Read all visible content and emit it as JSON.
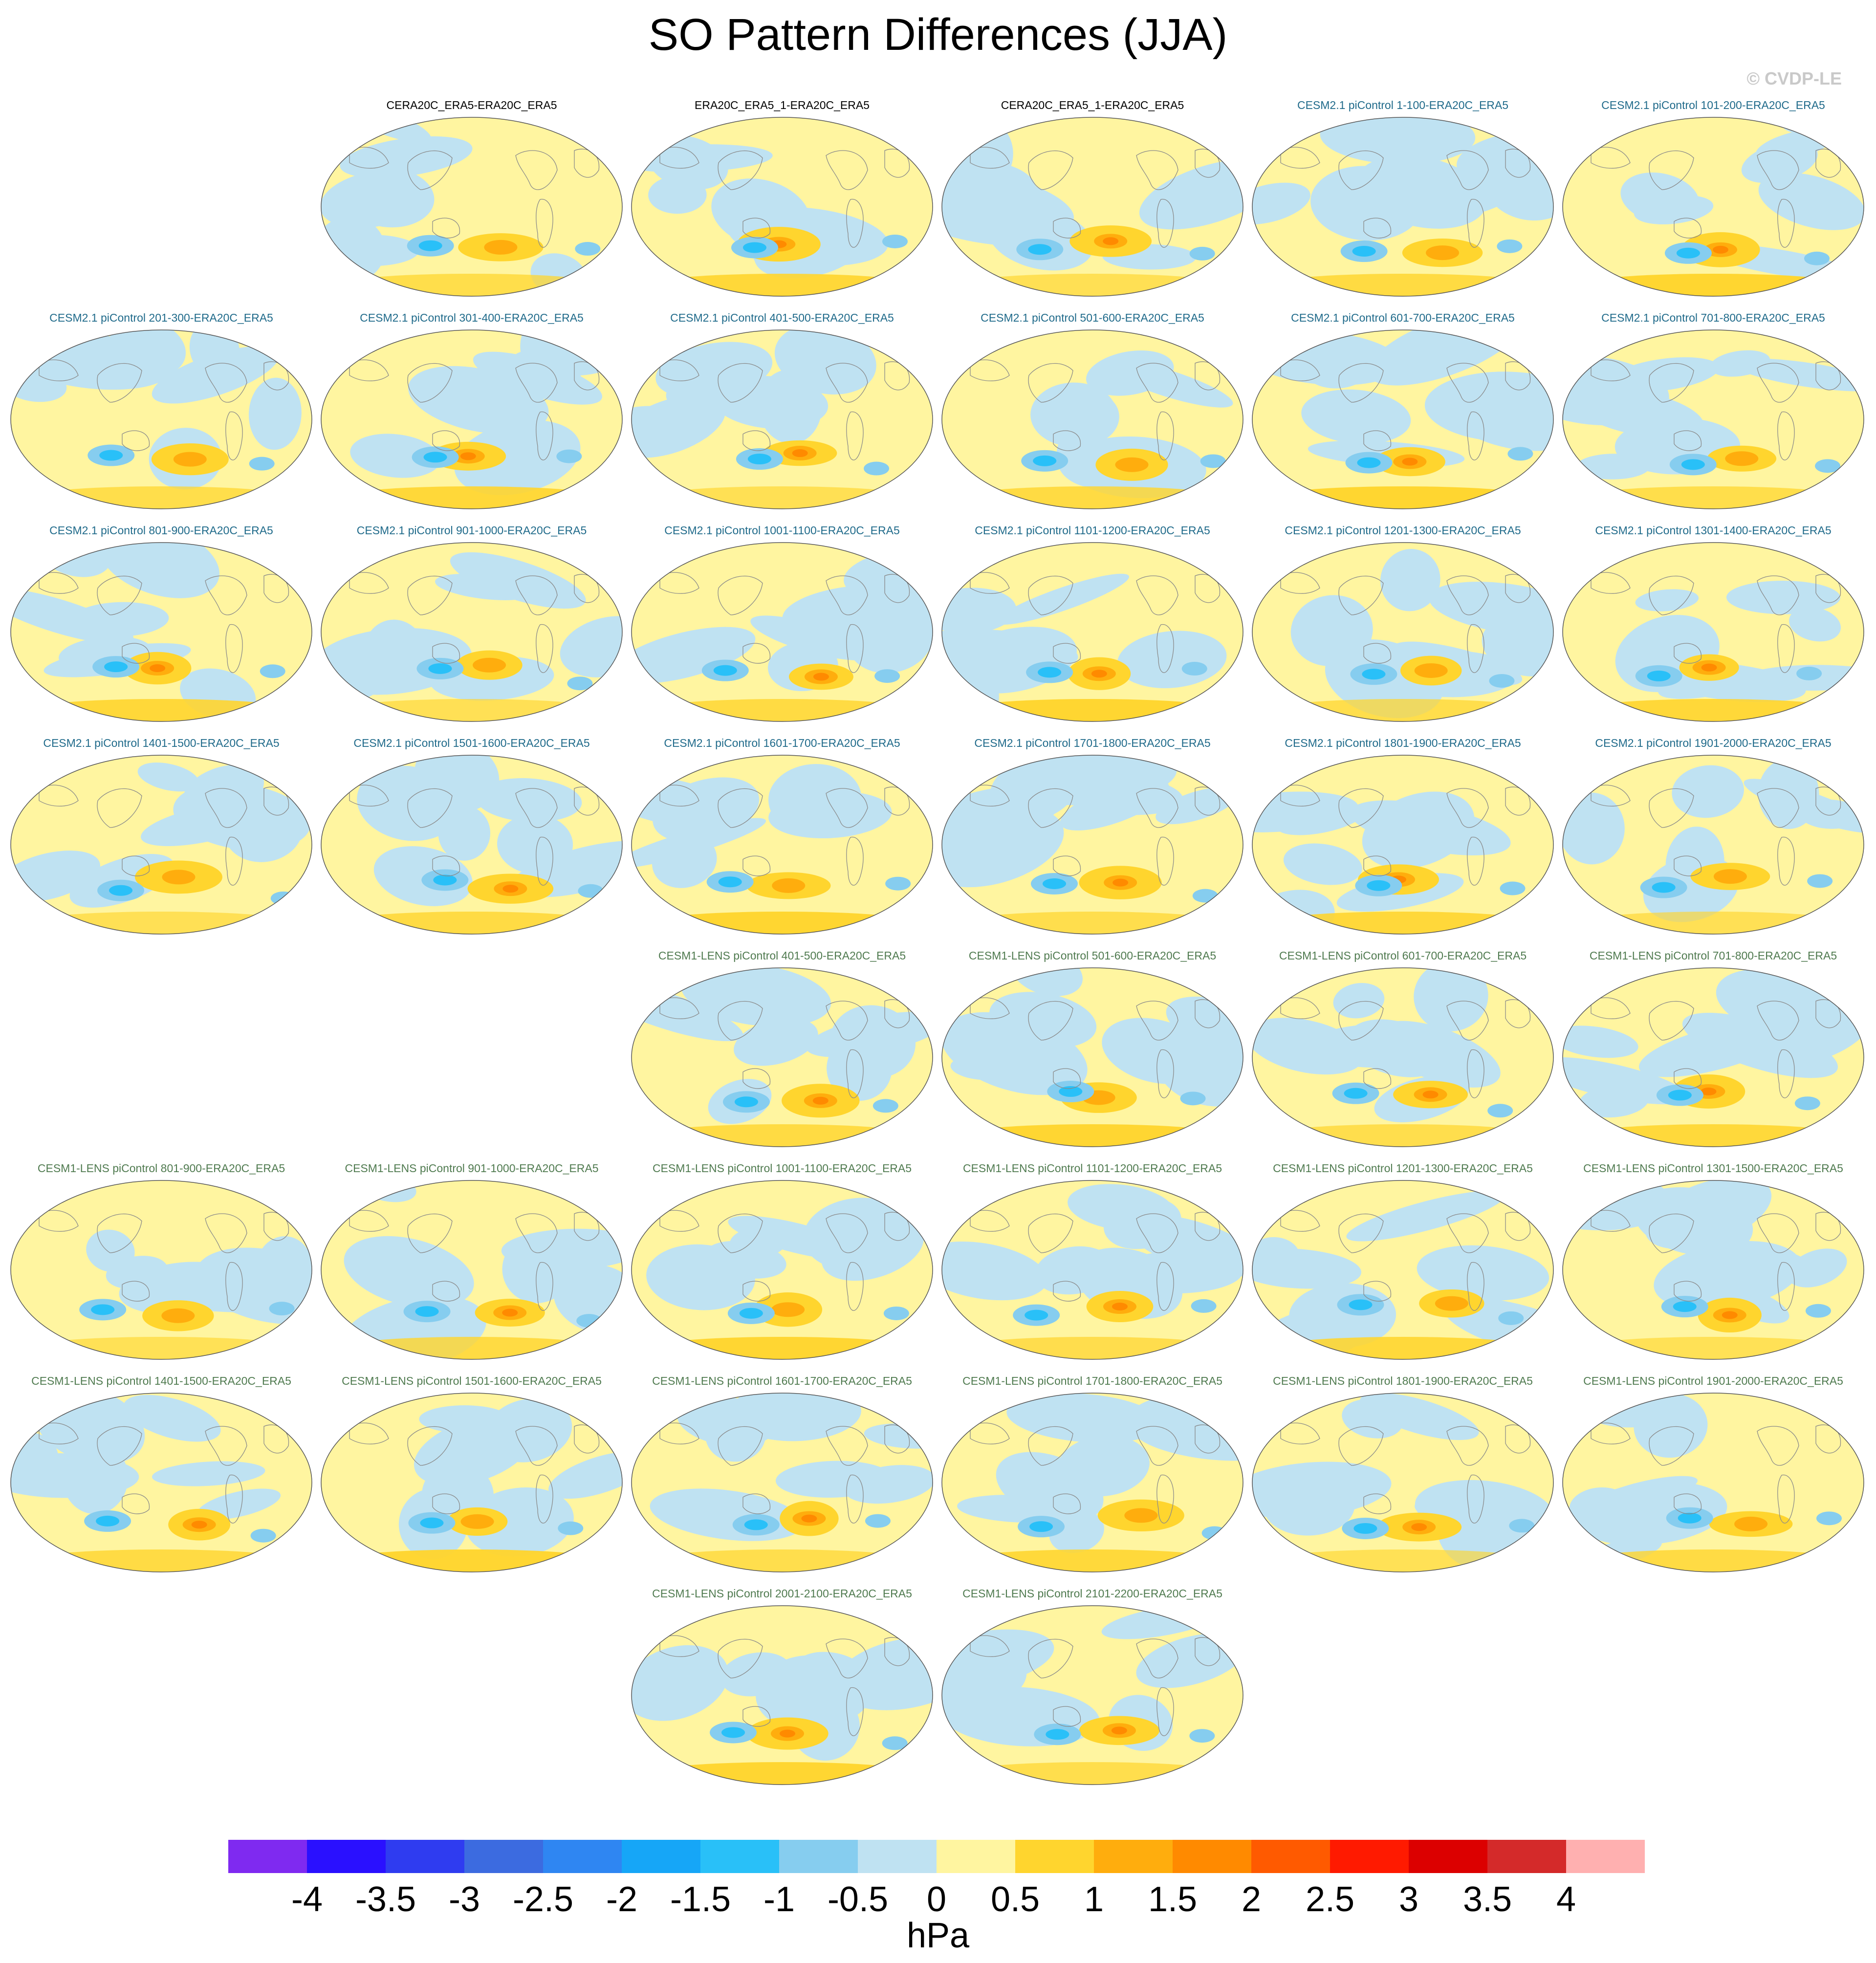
{
  "title": "SO Pattern Differences (JJA)",
  "copyright": "© CVDP-LE",
  "colorbar": {
    "units": "hPa",
    "labels": [
      "-4",
      "-3.5",
      "-3",
      "-2.5",
      "-2",
      "-1.5",
      "-1",
      "-0.5",
      "0",
      "0.5",
      "1",
      "1.5",
      "2",
      "2.5",
      "3",
      "3.5",
      "4"
    ],
    "colors": [
      "#7f2af0",
      "#2a10ff",
      "#2f3cf0",
      "#3c6be0",
      "#2f86f2",
      "#16a6f7",
      "#29c0f8",
      "#86cdef",
      "#bfe2f2",
      "#fff5a0",
      "#ffd52e",
      "#ffad0d",
      "#ff8a00",
      "#ff5a00",
      "#ff1a00",
      "#dc0000",
      "#d42a2a",
      "#ffb0b0"
    ]
  },
  "panels": [
    {
      "title": "CERA20C_ERA5-ERA20C_ERA5",
      "group": "obs",
      "row": 0,
      "col": 1
    },
    {
      "title": "ERA20C_ERA5_1-ERA20C_ERA5",
      "group": "obs",
      "row": 0,
      "col": 2
    },
    {
      "title": "CERA20C_ERA5_1-ERA20C_ERA5",
      "group": "obs",
      "row": 0,
      "col": 3
    },
    {
      "title": "CESM2.1 piControl 1-100-ERA20C_ERA5",
      "group": "cesm2",
      "row": 0,
      "col": 4
    },
    {
      "title": "CESM2.1 piControl 101-200-ERA20C_ERA5",
      "group": "cesm2",
      "row": 0,
      "col": 5
    },
    {
      "title": "CESM2.1 piControl 201-300-ERA20C_ERA5",
      "group": "cesm2",
      "row": 1,
      "col": 0
    },
    {
      "title": "CESM2.1 piControl 301-400-ERA20C_ERA5",
      "group": "cesm2",
      "row": 1,
      "col": 1
    },
    {
      "title": "CESM2.1 piControl 401-500-ERA20C_ERA5",
      "group": "cesm2",
      "row": 1,
      "col": 2
    },
    {
      "title": "CESM2.1 piControl 501-600-ERA20C_ERA5",
      "group": "cesm2",
      "row": 1,
      "col": 3
    },
    {
      "title": "CESM2.1 piControl 601-700-ERA20C_ERA5",
      "group": "cesm2",
      "row": 1,
      "col": 4
    },
    {
      "title": "CESM2.1 piControl 701-800-ERA20C_ERA5",
      "group": "cesm2",
      "row": 1,
      "col": 5
    },
    {
      "title": "CESM2.1 piControl 801-900-ERA20C_ERA5",
      "group": "cesm2",
      "row": 2,
      "col": 0
    },
    {
      "title": "CESM2.1 piControl 901-1000-ERA20C_ERA5",
      "group": "cesm2",
      "row": 2,
      "col": 1
    },
    {
      "title": "CESM2.1 piControl 1001-1100-ERA20C_ERA5",
      "group": "cesm2",
      "row": 2,
      "col": 2
    },
    {
      "title": "CESM2.1 piControl 1101-1200-ERA20C_ERA5",
      "group": "cesm2",
      "row": 2,
      "col": 3
    },
    {
      "title": "CESM2.1 piControl 1201-1300-ERA20C_ERA5",
      "group": "cesm2",
      "row": 2,
      "col": 4
    },
    {
      "title": "CESM2.1 piControl 1301-1400-ERA20C_ERA5",
      "group": "cesm2",
      "row": 2,
      "col": 5
    },
    {
      "title": "CESM2.1 piControl 1401-1500-ERA20C_ERA5",
      "group": "cesm2",
      "row": 3,
      "col": 0
    },
    {
      "title": "CESM2.1 piControl 1501-1600-ERA20C_ERA5",
      "group": "cesm2",
      "row": 3,
      "col": 1
    },
    {
      "title": "CESM2.1 piControl 1601-1700-ERA20C_ERA5",
      "group": "cesm2",
      "row": 3,
      "col": 2
    },
    {
      "title": "CESM2.1 piControl 1701-1800-ERA20C_ERA5",
      "group": "cesm2",
      "row": 3,
      "col": 3
    },
    {
      "title": "CESM2.1 piControl 1801-1900-ERA20C_ERA5",
      "group": "cesm2",
      "row": 3,
      "col": 4
    },
    {
      "title": "CESM2.1 piControl 1901-2000-ERA20C_ERA5",
      "group": "cesm2",
      "row": 3,
      "col": 5
    },
    {
      "title": "CESM1-LENS piControl 401-500-ERA20C_ERA5",
      "group": "cesm1",
      "row": 4,
      "col": 2
    },
    {
      "title": "CESM1-LENS piControl 501-600-ERA20C_ERA5",
      "group": "cesm1",
      "row": 4,
      "col": 3
    },
    {
      "title": "CESM1-LENS piControl 601-700-ERA20C_ERA5",
      "group": "cesm1",
      "row": 4,
      "col": 4
    },
    {
      "title": "CESM1-LENS piControl 701-800-ERA20C_ERA5",
      "group": "cesm1",
      "row": 4,
      "col": 5
    },
    {
      "title": "CESM1-LENS piControl 801-900-ERA20C_ERA5",
      "group": "cesm1",
      "row": 5,
      "col": 0
    },
    {
      "title": "CESM1-LENS piControl 901-1000-ERA20C_ERA5",
      "group": "cesm1",
      "row": 5,
      "col": 1
    },
    {
      "title": "CESM1-LENS piControl 1001-1100-ERA20C_ERA5",
      "group": "cesm1",
      "row": 5,
      "col": 2
    },
    {
      "title": "CESM1-LENS piControl 1101-1200-ERA20C_ERA5",
      "group": "cesm1",
      "row": 5,
      "col": 3
    },
    {
      "title": "CESM1-LENS piControl 1201-1300-ERA20C_ERA5",
      "group": "cesm1",
      "row": 5,
      "col": 4
    },
    {
      "title": "CESM1-LENS piControl 1301-1500-ERA20C_ERA5",
      "group": "cesm1",
      "row": 5,
      "col": 5
    },
    {
      "title": "CESM1-LENS piControl 1401-1500-ERA20C_ERA5",
      "group": "cesm1",
      "row": 6,
      "col": 0
    },
    {
      "title": "CESM1-LENS piControl 1501-1600-ERA20C_ERA5",
      "group": "cesm1",
      "row": 6,
      "col": 1
    },
    {
      "title": "CESM1-LENS piControl 1601-1700-ERA20C_ERA5",
      "group": "cesm1",
      "row": 6,
      "col": 2
    },
    {
      "title": "CESM1-LENS piControl 1701-1800-ERA20C_ERA5",
      "group": "cesm1",
      "row": 6,
      "col": 3
    },
    {
      "title": "CESM1-LENS piControl 1801-1900-ERA20C_ERA5",
      "group": "cesm1",
      "row": 6,
      "col": 4
    },
    {
      "title": "CESM1-LENS piControl 1901-2000-ERA20C_ERA5",
      "group": "cesm1",
      "row": 6,
      "col": 5
    },
    {
      "title": "CESM1-LENS piControl 2001-2100-ERA20C_ERA5",
      "group": "cesm1",
      "row": 7,
      "col": 2
    },
    {
      "title": "CESM1-LENS piControl 2101-2200-ERA20C_ERA5",
      "group": "cesm1",
      "row": 7,
      "col": 3
    }
  ]
}
